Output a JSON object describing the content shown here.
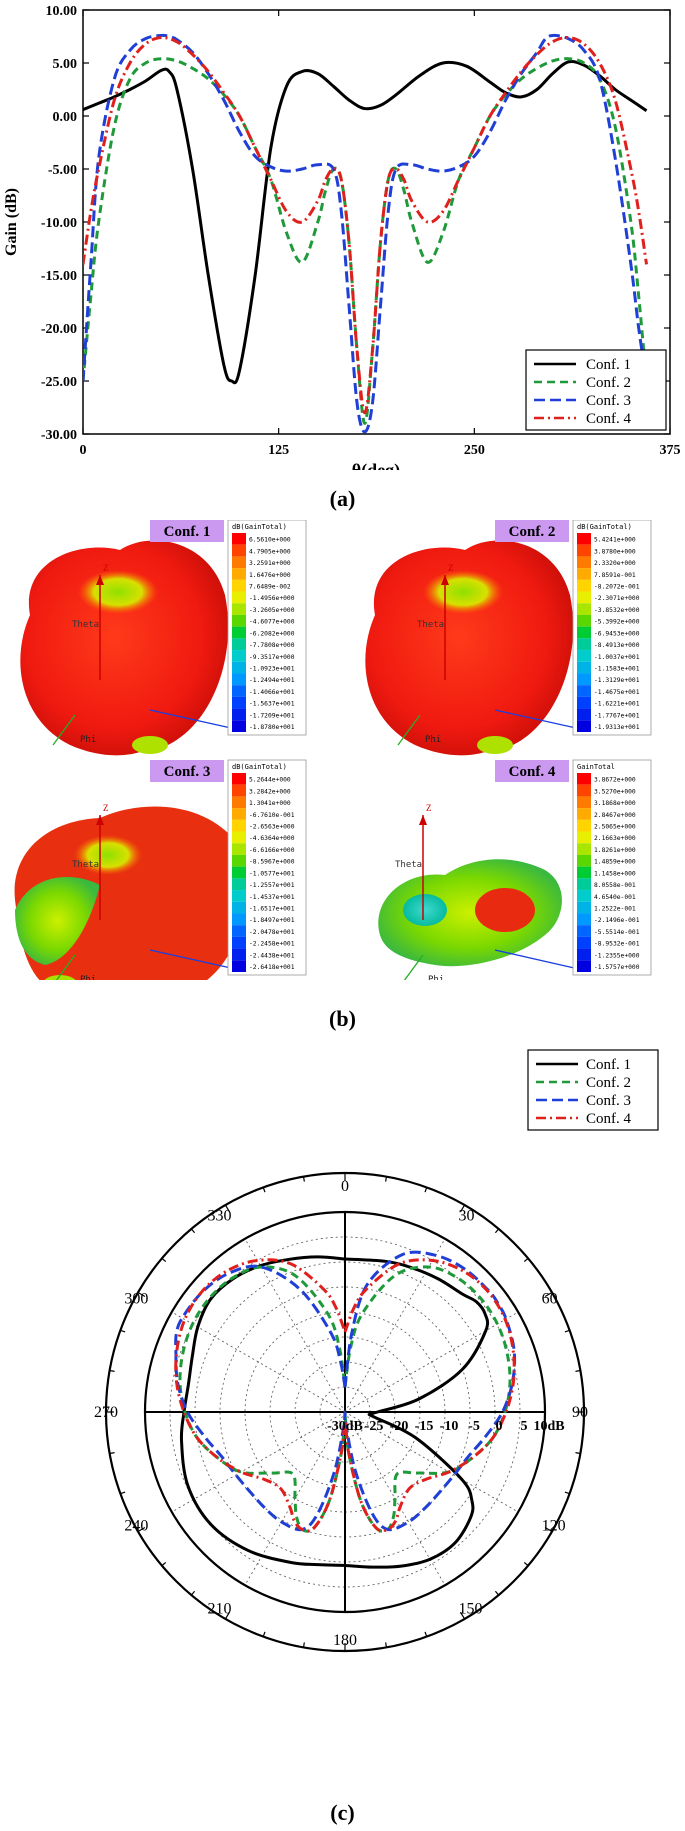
{
  "panel_a": {
    "caption": "(a)",
    "chart_data": {
      "type": "line",
      "xlabel": "θ(deg)",
      "ylabel": "Gain (dB)",
      "xlim": [
        0,
        375
      ],
      "ylim": [
        -30,
        10
      ],
      "xticks": [
        "0",
        "125",
        "250",
        "375"
      ],
      "xtick_values": [
        0,
        125,
        250,
        375
      ],
      "yticks": [
        "10.00",
        "5.00",
        "0.00",
        "-5.00",
        "-10.00",
        "-15.00",
        "-20.00",
        "-25.00",
        "-30.00"
      ],
      "ytick_values": [
        10,
        5,
        0,
        -5,
        -10,
        -15,
        -20,
        -25,
        -30
      ],
      "grid": false,
      "legend_position": "bottom-right",
      "series": [
        {
          "name": "Conf. 1",
          "color": "#000000",
          "dash": "solid",
          "x": [
            0,
            10,
            20,
            30,
            40,
            50,
            55,
            60,
            70,
            80,
            90,
            95,
            100,
            110,
            120,
            130,
            140,
            150,
            160,
            170,
            180,
            190,
            200,
            215,
            230,
            245,
            260,
            270,
            280,
            290,
            300,
            310,
            320,
            330,
            340,
            350,
            360
          ],
          "y": [
            0.6,
            1.2,
            1.8,
            2.5,
            3.3,
            4.3,
            4.2,
            2.5,
            -5,
            -15,
            -23.5,
            -25,
            -24,
            -15,
            -3,
            2.8,
            4.2,
            4.0,
            2.8,
            1.5,
            0.7,
            1.0,
            2.0,
            3.8,
            5.0,
            4.7,
            3.2,
            2.2,
            1.8,
            2.5,
            4.0,
            5.1,
            4.8,
            3.8,
            2.5,
            1.5,
            0.5
          ]
        },
        {
          "name": "Conf. 2",
          "color": "#1f9a3a",
          "dash": "8,5",
          "x": [
            0,
            5,
            10,
            20,
            30,
            40,
            50,
            60,
            70,
            80,
            90,
            100,
            110,
            120,
            130,
            140,
            150,
            155,
            160,
            165,
            170,
            175,
            180,
            185,
            190,
            195,
            200,
            205,
            210,
            220,
            230,
            240,
            250,
            260,
            270,
            280,
            290,
            300,
            310,
            320,
            330,
            340,
            350,
            355,
            360
          ],
          "y": [
            -25,
            -17,
            -10,
            -1,
            3.5,
            5.0,
            5.4,
            5.2,
            4.5,
            3.5,
            2.0,
            0,
            -3,
            -6,
            -11,
            -13.8,
            -10,
            -7,
            -5,
            -6,
            -12,
            -22,
            -29,
            -22,
            -12,
            -6,
            -5,
            -7,
            -10,
            -13.8,
            -11,
            -6,
            -3,
            0,
            2.0,
            3.5,
            4.5,
            5.2,
            5.4,
            5.0,
            3.5,
            -1,
            -10,
            -17,
            -25
          ]
        },
        {
          "name": "Conf. 3",
          "color": "#1f3fd6",
          "dash": "11,5",
          "x": [
            0,
            5,
            10,
            20,
            30,
            40,
            50,
            55,
            60,
            70,
            80,
            90,
            100,
            110,
            120,
            130,
            140,
            150,
            160,
            165,
            170,
            175,
            180,
            185,
            190,
            195,
            200,
            210,
            220,
            230,
            240,
            250,
            260,
            270,
            280,
            290,
            295,
            300,
            310,
            320,
            330,
            340,
            350,
            355,
            360
          ],
          "y": [
            -25,
            -14,
            -4,
            3.5,
            6.2,
            7.3,
            7.6,
            7.5,
            7.2,
            6,
            4,
            1.5,
            -1.5,
            -3.8,
            -4.8,
            -5.2,
            -5,
            -4.6,
            -5,
            -9,
            -18,
            -27,
            -29.8,
            -27,
            -18,
            -9,
            -5,
            -4.6,
            -5,
            -5.2,
            -4.8,
            -3.8,
            -1.5,
            1.5,
            4,
            6,
            7.2,
            7.6,
            7.3,
            6.2,
            3.5,
            -4,
            -14,
            -20,
            -25
          ]
        },
        {
          "name": "Conf. 4",
          "color": "#e0201c",
          "dash": "10,4,2,4",
          "x": [
            0,
            5,
            10,
            20,
            30,
            40,
            50,
            60,
            70,
            80,
            90,
            100,
            110,
            120,
            130,
            140,
            150,
            155,
            160,
            165,
            170,
            175,
            180,
            185,
            190,
            195,
            200,
            205,
            210,
            220,
            230,
            240,
            250,
            260,
            270,
            280,
            290,
            300,
            310,
            320,
            330,
            340,
            350,
            355,
            360
          ],
          "y": [
            -14,
            -9,
            -5,
            1.5,
            5,
            6.8,
            7.4,
            7,
            5.8,
            4.2,
            2.2,
            0,
            -3,
            -6,
            -9,
            -10,
            -8,
            -6,
            -5,
            -6,
            -12,
            -22,
            -28,
            -22,
            -12,
            -6,
            -5,
            -6,
            -8,
            -10,
            -9,
            -6,
            -3,
            0,
            2.2,
            4.2,
            5.8,
            7,
            7.4,
            6.8,
            5,
            1.5,
            -5,
            -9,
            -14
          ]
        }
      ]
    }
  },
  "panel_b": {
    "caption": "(b)",
    "plots": [
      {
        "label": "Conf. 1",
        "legend_title": "dB(GainTotal)",
        "values": [
          "6.5610e+000",
          "4.7905e+000",
          "3.2591e+000",
          "1.6476e+000",
          "7.6489e-002",
          "-1.4956e+000",
          "-3.2605e+000",
          "-4.6077e+000",
          "-6.2082e+000",
          "-7.7808e+000",
          "-9.3517e+000",
          "-1.0923e+001",
          "-1.2494e+001",
          "-1.4066e+001",
          "-1.5637e+001",
          "-1.7209e+001",
          "-1.8780e+001"
        ]
      },
      {
        "label": "Conf. 2",
        "legend_title": "dB(GainTotal)",
        "values": [
          "5.4241e+000",
          "3.8780e+000",
          "2.3320e+000",
          "7.8591e-001",
          "-8.2072e-001",
          "-2.3071e+000",
          "-3.8532e+000",
          "-5.3992e+000",
          "-6.9453e+000",
          "-8.4913e+000",
          "-1.0037e+001",
          "-1.1583e+001",
          "-1.3129e+001",
          "-1.4675e+001",
          "-1.6221e+001",
          "-1.7767e+001",
          "-1.9313e+001"
        ]
      },
      {
        "label": "Conf. 3",
        "legend_title": "dB(GainTotal)",
        "values": [
          "5.2644e+000",
          "3.2842e+000",
          "1.3041e+000",
          "-6.7610e-001",
          "-2.6563e+000",
          "-4.6364e+000",
          "-6.6166e+000",
          "-8.5967e+000",
          "-1.0577e+001",
          "-1.2557e+001",
          "-1.4537e+001",
          "-1.6517e+001",
          "-1.8497e+001",
          "-2.0478e+001",
          "-2.2458e+001",
          "-2.4438e+001",
          "-2.6418e+001"
        ]
      },
      {
        "label": "Conf. 4",
        "legend_title": "GainTotal",
        "values": [
          "3.8672e+000",
          "3.5270e+000",
          "3.1868e+000",
          "2.8467e+000",
          "2.5065e+000",
          "2.1663e+000",
          "1.8261e+000",
          "1.4859e+000",
          "1.1458e+000",
          "8.0558e-001",
          "4.6540e-001",
          "1.2522e-001",
          "-2.1496e-001",
          "-5.5514e-001",
          "-8.9532e-001",
          "-1.2355e+000",
          "-1.5757e+000"
        ]
      }
    ],
    "axis_labels": {
      "z": "Z",
      "y": "Y",
      "theta": "Theta",
      "phi": "Phi"
    },
    "colors": [
      "#ff0000",
      "#ff4400",
      "#ff7a00",
      "#ffaa00",
      "#ffd400",
      "#e8ef00",
      "#a8e600",
      "#5ad600",
      "#00cc33",
      "#00cc99",
      "#00cccc",
      "#00b3e6",
      "#0099ff",
      "#0066ff",
      "#0040ff",
      "#0020f0",
      "#0000e0"
    ]
  },
  "panel_c": {
    "caption": "(c)",
    "chart_data": {
      "type": "polar",
      "r_range_db": [
        -30,
        10
      ],
      "radial_ticks": [
        "-30dB",
        "-25",
        "-20",
        "-15",
        "-10",
        "-5",
        "0",
        "5",
        "10dB"
      ],
      "angle_ticks": [
        "0",
        "30",
        "60",
        "90",
        "120",
        "150",
        "180",
        "210",
        "240",
        "270",
        "300",
        "330"
      ],
      "grid": true,
      "legend_position": "top-right",
      "series": [
        {
          "name": "Conf. 1",
          "color": "#000000",
          "dash": "solid",
          "theta": [
            0,
            15,
            25,
            35,
            45,
            50,
            55,
            60,
            70,
            80,
            90,
            95,
            100,
            110,
            120,
            125,
            130,
            140,
            150,
            160,
            170,
            180,
            190,
            200,
            215,
            230,
            245,
            260,
            270,
            280,
            290,
            300,
            310,
            320,
            330,
            340,
            350,
            360
          ],
          "r": [
            0.6,
            1.2,
            1.8,
            2.5,
            3.3,
            4.3,
            4.2,
            2.5,
            -5,
            -15,
            -23.5,
            -25,
            -24,
            -15,
            -3,
            1.0,
            2.8,
            4.2,
            4.0,
            2.8,
            1.5,
            0.7,
            1.0,
            2.0,
            3.8,
            5.0,
            4.7,
            3.2,
            2.2,
            1.8,
            2.5,
            4.0,
            5.1,
            4.8,
            3.8,
            2.5,
            1.5,
            0.6
          ]
        },
        {
          "name": "Conf. 2",
          "color": "#1f9a3a",
          "dash": "8,5",
          "theta": [
            0,
            5,
            10,
            20,
            30,
            40,
            50,
            60,
            70,
            80,
            90,
            100,
            110,
            120,
            130,
            140,
            150,
            155,
            160,
            165,
            170,
            175,
            180,
            185,
            190,
            195,
            200,
            205,
            210,
            220,
            230,
            240,
            250,
            260,
            270,
            280,
            290,
            300,
            310,
            320,
            330,
            340,
            350,
            355,
            360
          ],
          "r": [
            -25,
            -17,
            -10,
            -1,
            3.5,
            5.0,
            5.4,
            5.2,
            4.5,
            3.5,
            2.0,
            0,
            -3,
            -6,
            -11,
            -13.8,
            -10,
            -7,
            -5,
            -6,
            -12,
            -22,
            -29,
            -22,
            -12,
            -6,
            -5,
            -7,
            -10,
            -13.8,
            -11,
            -6,
            -3,
            0,
            2.0,
            3.5,
            4.5,
            5.2,
            5.4,
            5.0,
            3.5,
            -1,
            -10,
            -17,
            -25
          ]
        },
        {
          "name": "Conf. 3",
          "color": "#1f3fd6",
          "dash": "11,5",
          "theta": [
            0,
            5,
            10,
            20,
            30,
            40,
            50,
            55,
            60,
            70,
            80,
            90,
            100,
            110,
            120,
            130,
            140,
            150,
            160,
            165,
            170,
            175,
            180,
            185,
            190,
            195,
            200,
            210,
            220,
            230,
            240,
            250,
            260,
            270,
            280,
            290,
            295,
            300,
            310,
            320,
            330,
            340,
            350,
            355,
            360
          ],
          "r": [
            -25,
            -14,
            -4,
            3.5,
            6.2,
            7.3,
            7.6,
            7.5,
            7.2,
            6,
            4,
            1.5,
            -1.5,
            -3.8,
            -4.8,
            -5.2,
            -5,
            -4.6,
            -5,
            -9,
            -18,
            -27,
            -29.8,
            -27,
            -18,
            -9,
            -5,
            -4.6,
            -5,
            -5.2,
            -4.8,
            -3.8,
            -1.5,
            1.5,
            4,
            6,
            7.2,
            7.6,
            7.3,
            6.2,
            3.5,
            -4,
            -14,
            -20,
            -25
          ]
        },
        {
          "name": "Conf. 4",
          "color": "#e0201c",
          "dash": "10,4,2,4",
          "theta": [
            0,
            5,
            10,
            20,
            30,
            40,
            50,
            60,
            70,
            80,
            90,
            100,
            110,
            120,
            130,
            140,
            150,
            155,
            160,
            165,
            170,
            175,
            180,
            185,
            190,
            195,
            200,
            205,
            210,
            220,
            230,
            240,
            250,
            260,
            270,
            280,
            290,
            300,
            310,
            320,
            330,
            340,
            350,
            355,
            360
          ],
          "r": [
            -14,
            -9,
            -5,
            1.5,
            5,
            6.8,
            7.4,
            7,
            5.8,
            4.2,
            2.2,
            0,
            -3,
            -6,
            -9,
            -10,
            -8,
            -6,
            -5,
            -6,
            -12,
            -22,
            -28,
            -22,
            -12,
            -6,
            -5,
            -6,
            -8,
            -10,
            -9,
            -6,
            -3,
            0,
            2.2,
            4.2,
            5.8,
            7,
            7.4,
            6.8,
            5,
            1.5,
            -5,
            -9,
            -14
          ]
        }
      ]
    }
  }
}
